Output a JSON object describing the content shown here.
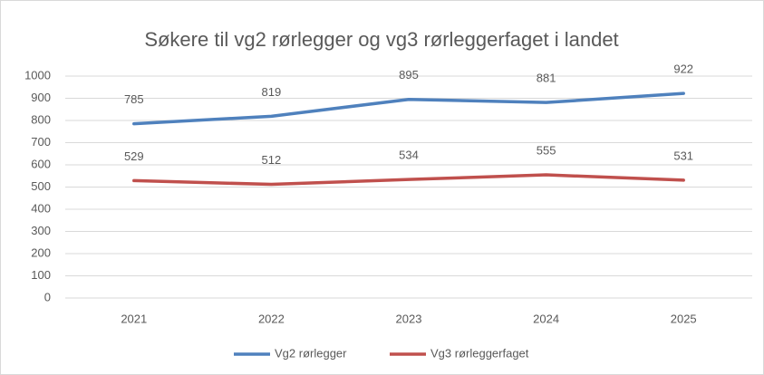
{
  "chart_data": {
    "type": "line",
    "title": "Søkere til vg2 rørlegger og vg3 rørleggerfaget i landet",
    "categories": [
      "2021",
      "2022",
      "2023",
      "2024",
      "2025"
    ],
    "series": [
      {
        "name": "Vg2 rørlegger",
        "color": "#4f81bd",
        "values": [
          785,
          819,
          895,
          881,
          922
        ]
      },
      {
        "name": "Vg3 rørleggerfaget",
        "color": "#c0504d",
        "values": [
          529,
          512,
          534,
          555,
          531
        ]
      }
    ],
    "ylim": [
      0,
      1000
    ],
    "yticks": [
      0,
      100,
      200,
      300,
      400,
      500,
      600,
      700,
      800,
      900,
      1000
    ],
    "grid": true,
    "legend": "bottom"
  }
}
